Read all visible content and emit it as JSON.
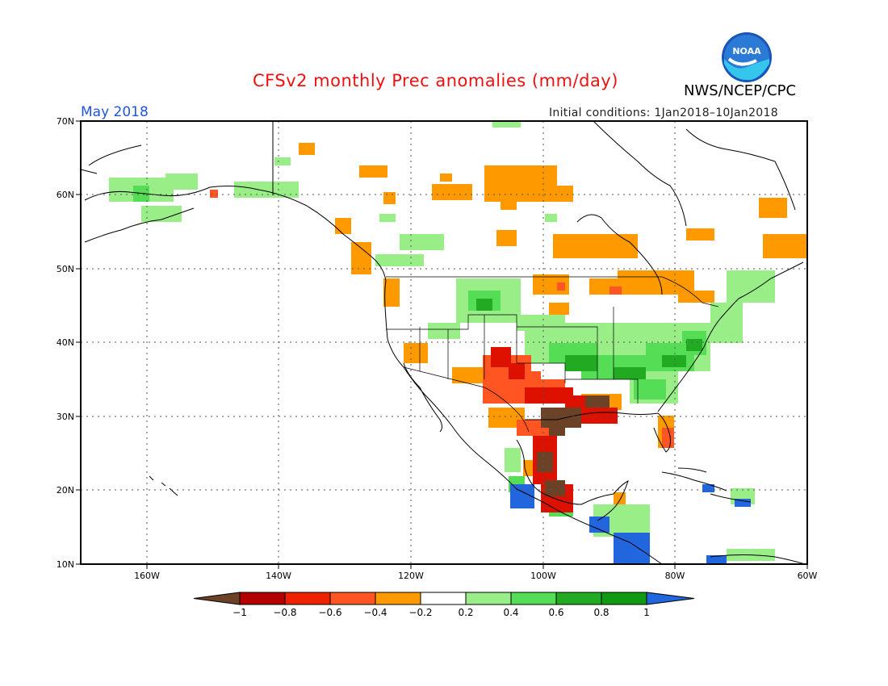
{
  "title": "CFSv2 monthly Prec anomalies (mm/day)",
  "agency": "NWS/NCEP/CPC",
  "logo": {
    "icon": "noaa-logo",
    "text": "NOAA"
  },
  "period": "May 2018",
  "initial_conditions": "Initial conditions: 1Jan2018–10Jan2018",
  "map": {
    "lat_labels": [
      "70N",
      "60N",
      "50N",
      "40N",
      "30N",
      "20N",
      "10N"
    ],
    "lon_labels": [
      "160W",
      "140W",
      "120W",
      "100W",
      "80W",
      "60W"
    ],
    "lon_range": [
      -170,
      -60
    ],
    "lat_range": [
      10,
      70
    ]
  },
  "colorbar": {
    "labels": [
      "−1",
      "−0.8",
      "−0.6",
      "−0.4",
      "−0.2",
      "0.2",
      "0.4",
      "0.6",
      "0.8",
      "1"
    ],
    "colors": [
      "#6b4226",
      "#b30000",
      "#ee2200",
      "#ff5522",
      "#ff9900",
      "#ffffff",
      "#99ee88",
      "#55dd55",
      "#22aa22",
      "#119911",
      "#2266dd"
    ]
  }
}
